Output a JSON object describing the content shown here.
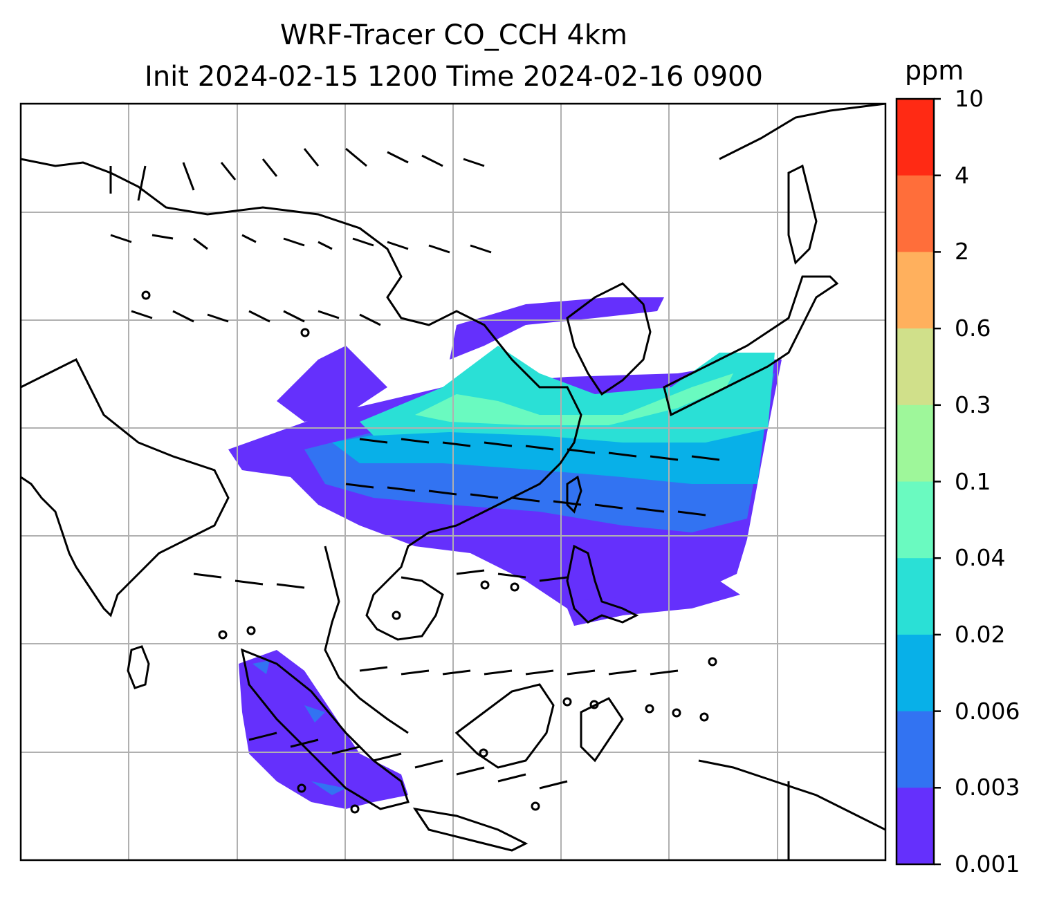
{
  "title": {
    "line1": "WRF-Tracer CO_CCH 4km",
    "line2": "Init 2024-02-15 1200 Time 2024-02-16 0900"
  },
  "colorbar": {
    "unit": "ppm",
    "levels": [
      "10",
      "4",
      "2",
      "0.6",
      "0.3",
      "0.1",
      "0.04",
      "0.02",
      "0.006",
      "0.003",
      "0.001"
    ],
    "colors": [
      "#ff2a14",
      "#ff6e3a",
      "#ffb05d",
      "#d0e08a",
      "#9ef79a",
      "#6afac0",
      "#2ae0d6",
      "#08b0e8",
      "#3273f2",
      "#6530fc"
    ]
  },
  "map": {
    "grid": true,
    "overlay": "wind-barbs",
    "background": "#ffffff"
  }
}
